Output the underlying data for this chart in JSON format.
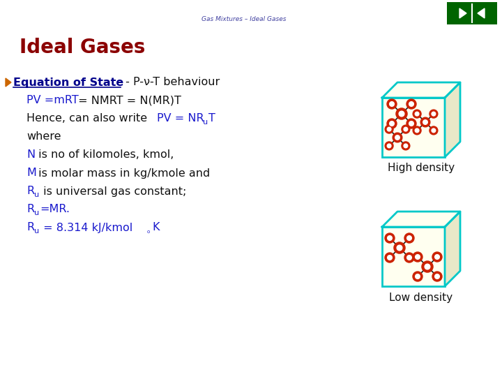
{
  "background_color": "#ffffff",
  "title_text": "Gas Mixtures – Ideal Gases",
  "title_color": "#4040a0",
  "title_fontsize": 6.5,
  "heading_text": "Ideal Gases",
  "heading_color": "#8B0000",
  "heading_fontsize": 20,
  "nav_color": "#006400",
  "blue_color": "#1a1acd",
  "dark_blue": "#00008B",
  "black": "#111111",
  "cube_border_color": "#00C8C8",
  "cube_fill_color": "#FFFFF0",
  "cube_side_color": "#E8E8C8",
  "molecule_body_color": "#CC2200",
  "molecule_bond_color": "#1a1a1a",
  "high_density_label": "High density",
  "low_density_label": "Low density",
  "label_color": "#111111",
  "label_fontsize": 11,
  "arrow_color": "#CC6600"
}
